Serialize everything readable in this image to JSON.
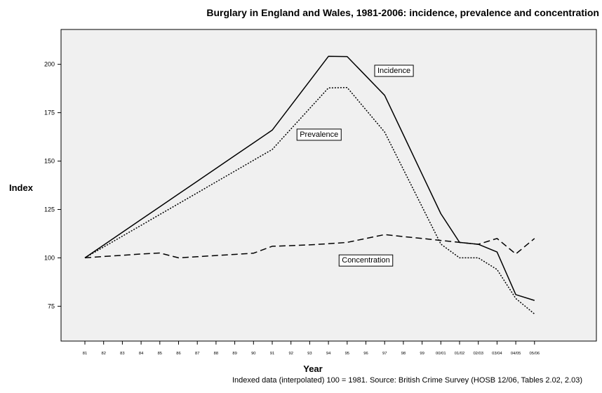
{
  "chart_data": {
    "type": "line",
    "title": "Burglary in England and Wales, 1981-2006: incidence, prevalence and concentration",
    "xlabel": "Year",
    "ylabel": "Index",
    "note": "Indexed data (interpolated) 100 = 1981. Source: British Crime Survey (HOSB 12/06, Tables 2.02, 2.03)",
    "categories": [
      "81",
      "82",
      "83",
      "84",
      "85",
      "86",
      "87",
      "88",
      "89",
      "90",
      "91",
      "92",
      "93",
      "94",
      "95",
      "96",
      "97",
      "98",
      "99",
      "00/01",
      "01/02",
      "02/03",
      "03/04",
      "04/05",
      "05/06"
    ],
    "yticks": [
      75,
      100,
      125,
      150,
      175,
      200
    ],
    "ylim": [
      57,
      218
    ],
    "grid": false,
    "series": [
      {
        "name": "Incidence",
        "style": "solid",
        "values": [
          100,
          106.6,
          113.2,
          119.8,
          126.4,
          133,
          139.6,
          146.2,
          152.8,
          159.4,
          166,
          178.7,
          191.4,
          204.1,
          204,
          194,
          184,
          163.6,
          143.2,
          122.8,
          108,
          107,
          103,
          81,
          78
        ]
      },
      {
        "name": "Prevalence",
        "style": "dotted",
        "values": [
          100,
          105.6,
          111.2,
          116.8,
          122.4,
          128,
          133.6,
          139.2,
          144.8,
          150.4,
          156,
          166.6,
          177.2,
          187.8,
          188,
          176.5,
          165,
          145.7,
          126.4,
          107.1,
          100,
          100,
          94,
          79,
          71
        ]
      },
      {
        "name": "Concentration",
        "style": "dashed",
        "values": [
          100,
          100.7,
          101.3,
          102,
          102.5,
          100,
          100.6,
          101.2,
          101.8,
          102.4,
          106,
          106.3,
          106.7,
          107.3,
          108,
          110,
          112,
          111,
          110,
          109,
          108,
          107,
          110,
          102,
          110
        ]
      }
    ],
    "annotations": [
      {
        "text": "Incidence",
        "series": "Incidence",
        "x": "97.5",
        "y": 197
      },
      {
        "text": "Prevalence",
        "series": "Prevalence",
        "x": "93.5",
        "y": 164
      },
      {
        "text": "Concentration",
        "series": "Concentration",
        "x": "96",
        "y": 99
      }
    ]
  }
}
